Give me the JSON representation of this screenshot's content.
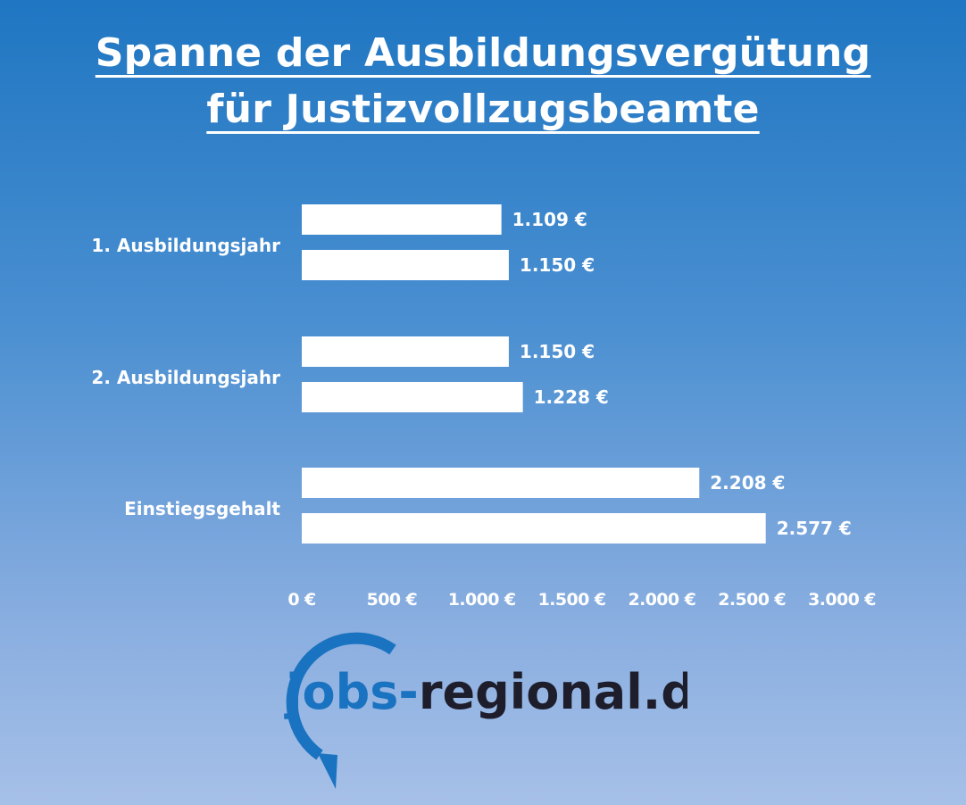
{
  "title_line1": "Spanne der Ausbildungsvergütung",
  "title_line2": "für Justizvollzugsbeamte",
  "chart_data": {
    "type": "bar",
    "orientation": "horizontal",
    "categories": [
      "1. Ausbildungsjahr",
      "2. Ausbildungsjahr",
      "Einstiegsgehalt"
    ],
    "series": [
      {
        "values": [
          1109,
          1150,
          2208
        ],
        "labels": [
          "1.109 €",
          "1.150 €",
          "2.208 €"
        ]
      },
      {
        "values": [
          1150,
          1228,
          2577
        ],
        "labels": [
          "1.150 €",
          "1.228 €",
          "2.577 €"
        ]
      }
    ],
    "xlim": [
      0,
      3000
    ],
    "xticks": [
      0,
      500,
      1000,
      1500,
      2000,
      2500,
      3000
    ],
    "xtick_labels": [
      "0 €",
      "500 €",
      "1.000 €",
      "1.500 €",
      "2.000 €",
      "2.500 €",
      "3.000 €"
    ],
    "grid": false,
    "bar_color": "#ffffff"
  },
  "logo": {
    "part1": "jobs-",
    "part2": "regional.de",
    "colors": {
      "ring": "#1a73c0",
      "part1": "#1a73c0",
      "part2": "#1d1d2b"
    }
  }
}
